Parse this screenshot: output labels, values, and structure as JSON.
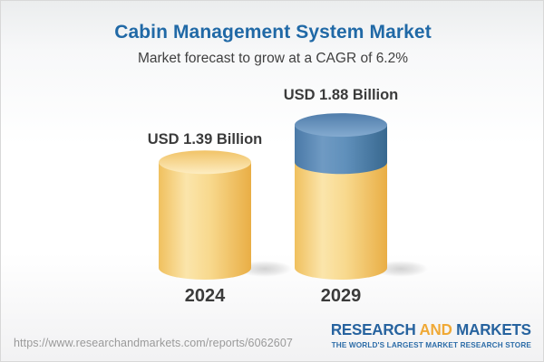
{
  "header": {
    "title": "Cabin Management System Market",
    "subtitle": "Market forecast to grow at a CAGR of 6.2%"
  },
  "chart_data": {
    "type": "bar",
    "subtype": "3d-cylinder",
    "categories": [
      "2024",
      "2029"
    ],
    "values": [
      1.39,
      1.88
    ],
    "value_labels": [
      "USD 1.39 Billion",
      "USD 1.88 Billion"
    ],
    "unit": "USD Billion",
    "cagr_percent": 6.2,
    "title": "Cabin Management System Market",
    "legend_position": "none",
    "grid": false,
    "axis_labels_visible": false,
    "notes": "2029 cylinder shows the 2024 base value in gold with the incremental growth segment stacked on top in blue",
    "segment_colors": {
      "base_gold": "#f5cd74",
      "growth_blue": "#4d7fae"
    }
  },
  "footer": {
    "url": "https://www.researchandmarkets.com/reports/6062607",
    "logo": {
      "part1": "RESEARCH",
      "part2": "AND",
      "part3": "MARKETS",
      "tagline": "THE WORLD'S LARGEST MARKET RESEARCH STORE"
    }
  },
  "colors": {
    "title_blue": "#2069a6",
    "text_dark": "#3b3b3b",
    "url_gray": "#9a9a9a",
    "logo_blue": "#27639f",
    "logo_gold": "#f0a936",
    "tagline_blue": "#2d6da8",
    "border_gray": "#d8d8d8",
    "background_top": "#ebedee",
    "background_bottom": "#f2f2f3",
    "gold_body_left": "#f0c05e",
    "gold_body_light": "#fbe5ab",
    "gold_body_right": "#e9ae45",
    "gold_top_light": "#fdedc2",
    "blue_body_left": "#4a79a7",
    "blue_body_light": "#6f9ac3",
    "blue_body_right": "#38688f",
    "blue_top_light": "#84abd0"
  }
}
